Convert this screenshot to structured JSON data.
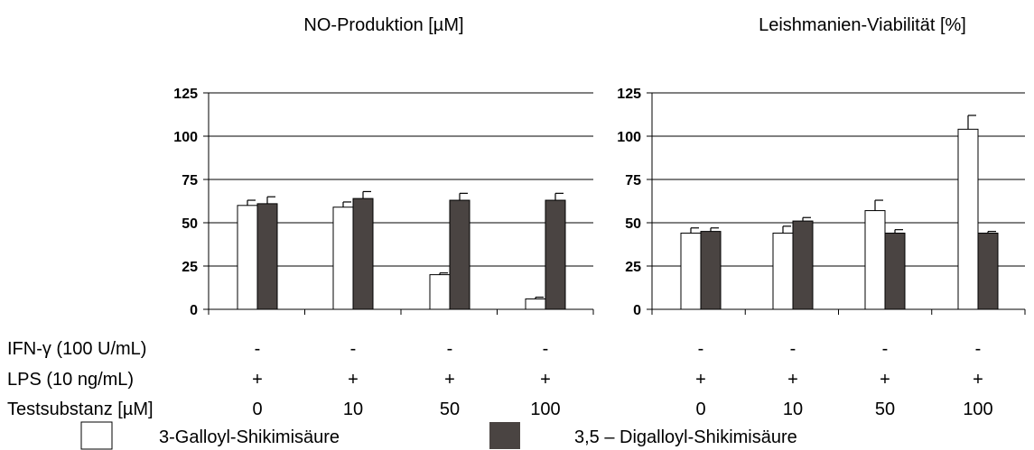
{
  "colors": {
    "galloyl": "#ffffff",
    "digalloyl": "#4a4442",
    "axis": "#000000"
  },
  "chart_data": [
    {
      "type": "bar",
      "title": "NO-Produktion [µM]",
      "ylim": [
        0,
        125
      ],
      "yticks": [
        "0",
        "25",
        "50",
        "75",
        "100",
        "125"
      ],
      "categories": [
        "0",
        "10",
        "50",
        "100"
      ],
      "grid": true,
      "series": [
        {
          "name": "3-Galloyl-Shikimisäure",
          "values": [
            60,
            59,
            20,
            6
          ],
          "errors": [
            3,
            3,
            1,
            1
          ]
        },
        {
          "name": "3,5 – Digalloyl-Shikimisäure",
          "values": [
            61,
            64,
            63,
            63
          ],
          "errors": [
            4,
            4,
            4,
            4
          ]
        }
      ]
    },
    {
      "type": "bar",
      "title": "Leishmanien-Viabilität [%]",
      "ylim": [
        0,
        125
      ],
      "yticks": [
        "0",
        "25",
        "50",
        "75",
        "100",
        "125"
      ],
      "categories": [
        "0",
        "10",
        "50",
        "100"
      ],
      "grid": true,
      "series": [
        {
          "name": "3-Galloyl-Shikimisäure",
          "values": [
            44,
            44,
            57,
            104
          ],
          "errors": [
            3,
            4,
            6,
            8
          ]
        },
        {
          "name": "3,5 – Digalloyl-Shikimisäure",
          "values": [
            45,
            51,
            44,
            44
          ],
          "errors": [
            2,
            2,
            2,
            1
          ]
        }
      ]
    }
  ],
  "conditions": {
    "ifn_label": "IFN-γ (100 U/mL)",
    "lps_label": "LPS   (10 ng/mL)",
    "test_label": "Testsubstanz [µM]",
    "ifn_values": [
      "-",
      "-",
      "-",
      "-"
    ],
    "lps_values": [
      "+",
      "+",
      "+",
      "+"
    ],
    "test_values": [
      "0",
      "10",
      "50",
      "100"
    ]
  },
  "legend": {
    "galloyl_label": "3-Galloyl-Shikimisäure",
    "digalloyl_label": "3,5 – Digalloyl-Shikimisäure"
  }
}
